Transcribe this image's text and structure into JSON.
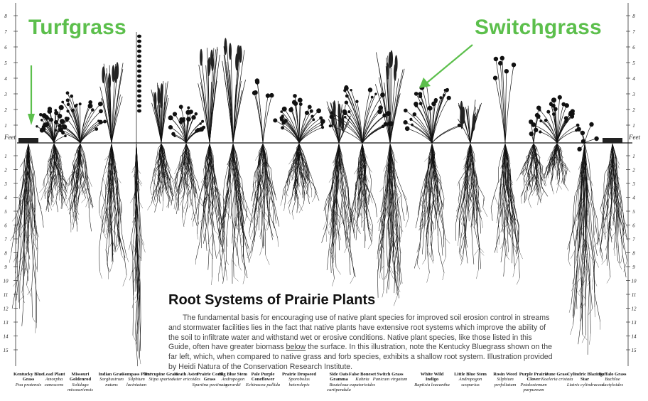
{
  "callouts": {
    "left": "Turfgrass",
    "right": "Switchgrass"
  },
  "ruler": {
    "feet_label": "Feet",
    "above_ground": [
      "8",
      "7",
      "6",
      "5",
      "4",
      "3",
      "2",
      "1"
    ],
    "below_ground": [
      "1",
      "2",
      "3",
      "4",
      "5",
      "6",
      "7",
      "8",
      "9",
      "10",
      "11",
      "12",
      "13",
      "14",
      "15"
    ]
  },
  "text_block": {
    "title": "Root Systems of Prairie Plants",
    "paragraph_before": "The fundamental basis for encouraging use of native plant species for improved soil erosion control in streams and stormwater facilities lies in the fact that native plants have extensive root systems which improve the ability of the soil to infiltrate water and withstand wet or erosive conditions. Native plant species, like those listed in this Guide, often have greater biomass ",
    "paragraph_underlined": "below",
    "paragraph_after": " the surface. In this illustration, note the Kentucky Bluegrass shown on the far left, which, when compared to native grass and forb species, exhibits a shallow root system. Illustration provided by Heidi Natura of the Conservation Research Institute."
  },
  "plants": [
    {
      "common": "Kentucky Blue Grass",
      "scientific": "Poa pratensis"
    },
    {
      "common": "Lead Plant",
      "scientific": "Amorpha canescens"
    },
    {
      "common": "Missouri Goldenrod",
      "scientific": "Solidago missouriensis"
    },
    {
      "common": "Indian Grass",
      "scientific": "Sorghastrum nutans"
    },
    {
      "common": "Compass Plant",
      "scientific": "Silphium laciniatum"
    },
    {
      "common": "Porcupine Grass",
      "scientific": "Stipa spartea"
    },
    {
      "common": "Heath Aster",
      "scientific": "Aster ericoides"
    },
    {
      "common": "Prairie Cord Grass",
      "scientific": "Spartina pectinata"
    },
    {
      "common": "Big Blue Stem",
      "scientific": "Andropogon gerardii"
    },
    {
      "common": "Pale Purple Coneflower",
      "scientific": "Echinacea pallida"
    },
    {
      "common": "Prairie Dropseed",
      "scientific": "Sporobolus heterolepis"
    },
    {
      "common": "Side Oats Gramma",
      "scientific": "Bouteloua curtipendula"
    },
    {
      "common": "False Boneset",
      "scientific": "Kuhnia eupatorioides"
    },
    {
      "common": "Switch Grass",
      "scientific": "Panicum virgatum"
    },
    {
      "common": "White Wild Indigo",
      "scientific": "Baptisia leucantha"
    },
    {
      "common": "Little Blue Stem",
      "scientific": "Andropogon scoparius"
    },
    {
      "common": "Rosin Weed",
      "scientific": "Silphium perfoliatum"
    },
    {
      "common": "Purple Prairie Clover",
      "scientific": "Petalostemum purpureum"
    },
    {
      "common": "June Grass",
      "scientific": "Koeleria cristata"
    },
    {
      "common": "Cylindric Blazing Star",
      "scientific": "Liatris cylindracea"
    },
    {
      "common": "Buffalo Grass",
      "scientific": "Buchloe dactyloides"
    }
  ]
}
